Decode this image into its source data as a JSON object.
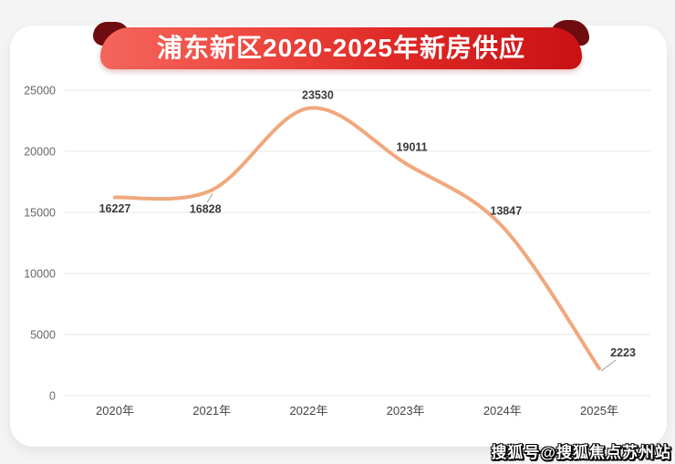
{
  "banner": {
    "title": "浦东新区2020-2025年新房供应",
    "gradient_start": "#f4655c",
    "gradient_end": "#c91114",
    "fold_color": "#6f0c10"
  },
  "watermark": {
    "text": "搜狐号@搜狐焦点苏州站"
  },
  "chart_data": {
    "type": "line",
    "title": "浦东新区2020-2025年新房供应",
    "categories": [
      "2020年",
      "2021年",
      "2022年",
      "2023年",
      "2024年",
      "2025年"
    ],
    "values": [
      16227,
      16828,
      23530,
      19011,
      13847,
      2223
    ],
    "xlabel": "",
    "ylabel": "",
    "ylim": [
      0,
      25000
    ],
    "yticks": [
      0,
      5000,
      10000,
      15000,
      20000,
      25000
    ],
    "grid": true,
    "legend": false,
    "smooth": true,
    "data_labels": true,
    "line_color": "#f0a87c",
    "grid_color": "#e7e7e7",
    "label_color": "#3a3a3a"
  }
}
